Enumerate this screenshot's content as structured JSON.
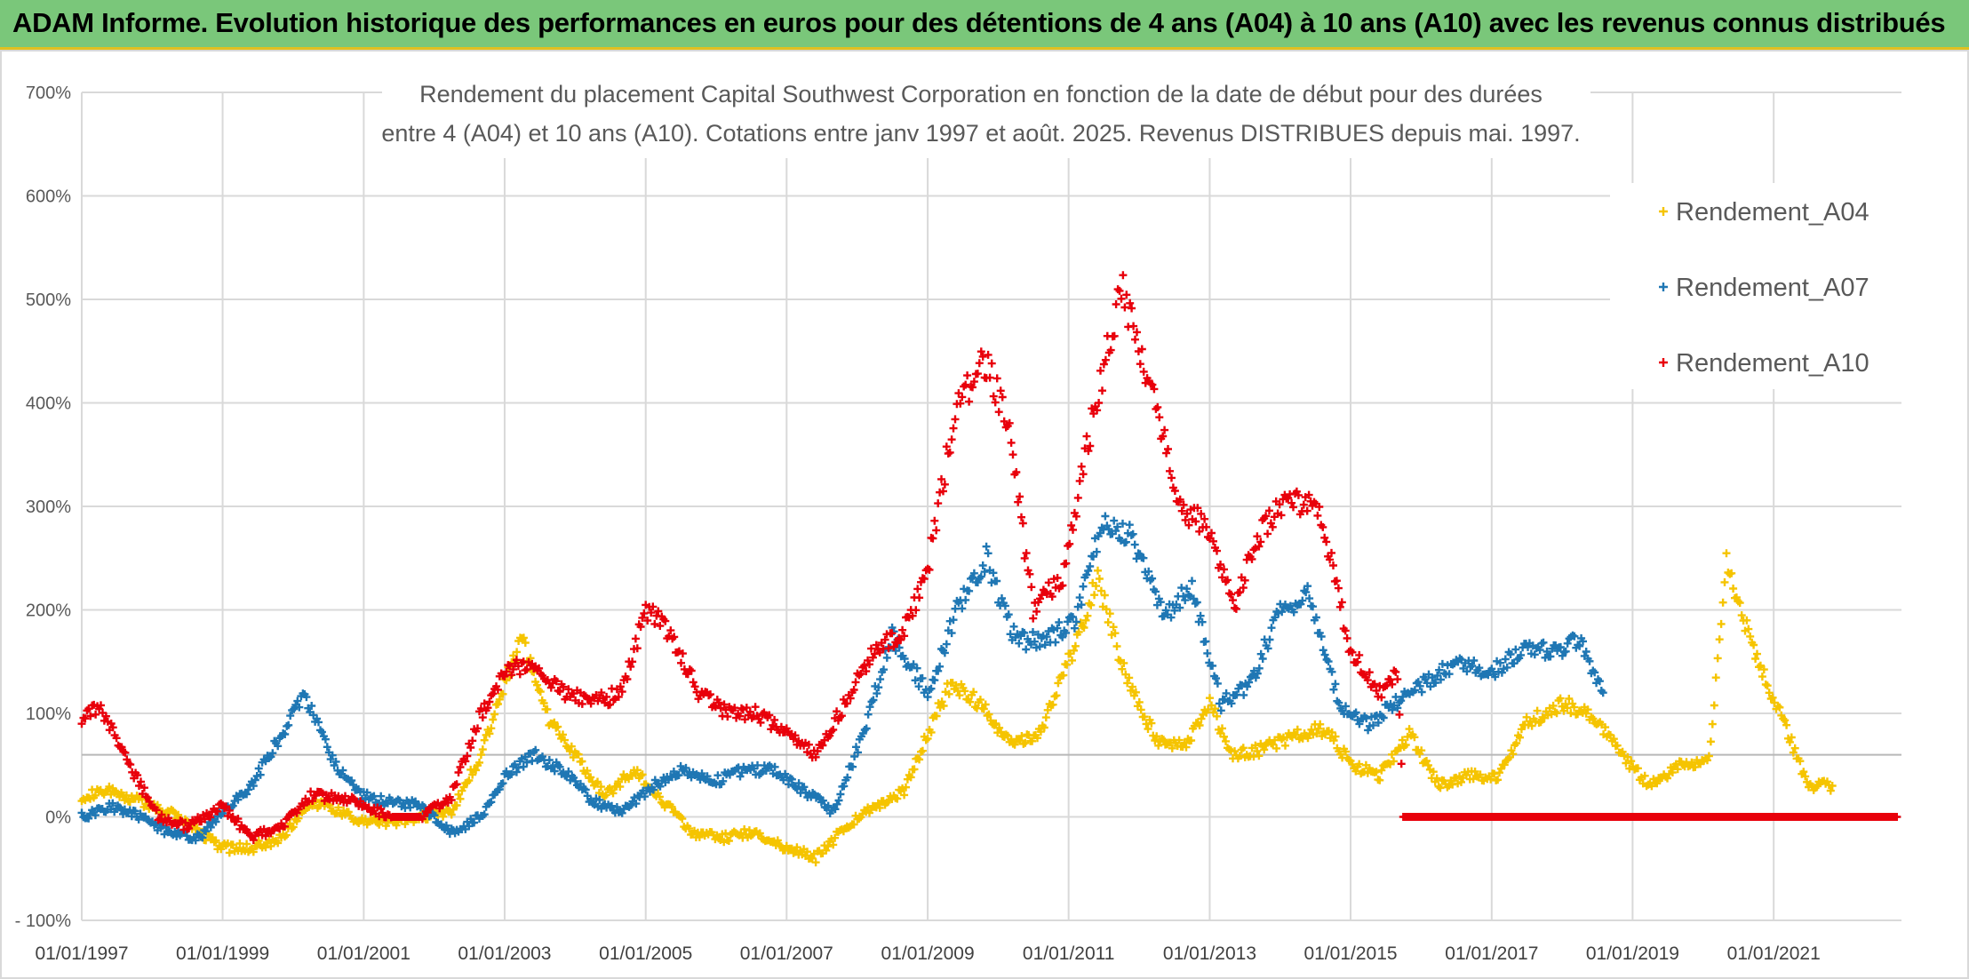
{
  "banner": {
    "title": "ADAM Informe. Evolution historique des performances en euros pour des détentions de 4 ans (A04) à 10 ans (A10) avec les revenus connus distribués"
  },
  "colors": {
    "banner_bg": "#7ac77a",
    "A04": "#f5c400",
    "A07": "#1f77b4",
    "A10": "#e8000b",
    "grid": "#d9d9d9"
  },
  "chart_data": {
    "type": "scatter",
    "title": "Rendement du placement Capital Southwest Corporation en fonction de la date de début pour des durées entre 4 (A04) et 10 ans (A10). Cotations entre janv 1997 et août. 2025. Revenus DISTRIBUES depuis mai. 1997.",
    "title_lines": [
      "Rendement du placement Capital Southwest Corporation en fonction de la date de début pour des durées",
      "entre 4 (A04) et 10 ans (A10). Cotations entre janv 1997 et août. 2025. Revenus DISTRIBUES depuis mai. 1997."
    ],
    "marker": "+",
    "grid": true,
    "legend_position": "top-right",
    "y_axis": {
      "min": -100,
      "max": 700,
      "unit": "%",
      "ticks": [
        -100,
        0,
        100,
        200,
        300,
        400,
        500,
        600,
        700
      ],
      "tick_labels": [
        "- 100%",
        "0%",
        "100%",
        "200%",
        "300%",
        "400%",
        "500%",
        "600%",
        "700%"
      ]
    },
    "x_axis": {
      "min": "1997-01-01",
      "max": "2022-10-25",
      "ticks": [
        "1997-01-01",
        "1999-01-01",
        "2001-01-01",
        "2003-01-01",
        "2005-01-01",
        "2007-01-01",
        "2009-01-01",
        "2011-01-01",
        "2013-01-01",
        "2015-01-01",
        "2017-01-01",
        "2019-01-01",
        "2021-01-01"
      ],
      "tick_labels": [
        "01/01/1997",
        "01/01/1999",
        "01/01/2001",
        "01/01/2003",
        "01/01/2005",
        "01/01/2007",
        "01/01/2009",
        "01/01/2011",
        "01/01/2013",
        "01/01/2015",
        "01/01/2017",
        "01/01/2019",
        "01/01/2021"
      ]
    },
    "series": [
      {
        "name": "Rendement_A04",
        "color": "#f5c400",
        "points": [
          [
            "1997-01-01",
            20
          ],
          [
            "1997-06-01",
            25
          ],
          [
            "1997-11-01",
            15
          ],
          [
            "1998-04-01",
            5
          ],
          [
            "1998-09-01",
            -15
          ],
          [
            "1999-01-01",
            -30
          ],
          [
            "1999-06-01",
            -30
          ],
          [
            "1999-11-01",
            -20
          ],
          [
            "2000-04-01",
            15
          ],
          [
            "2000-09-01",
            5
          ],
          [
            "2001-01-01",
            -5
          ],
          [
            "2001-06-01",
            -5
          ],
          [
            "2001-11-01",
            0
          ],
          [
            "2002-04-01",
            5
          ],
          [
            "2002-09-01",
            60
          ],
          [
            "2003-01-01",
            130
          ],
          [
            "2003-04-01",
            175
          ],
          [
            "2003-08-01",
            100
          ],
          [
            "2004-01-01",
            60
          ],
          [
            "2004-06-01",
            20
          ],
          [
            "2004-11-01",
            45
          ],
          [
            "2005-04-01",
            15
          ],
          [
            "2005-09-01",
            -15
          ],
          [
            "2006-02-01",
            -20
          ],
          [
            "2006-07-01",
            -15
          ],
          [
            "2007-01-01",
            -30
          ],
          [
            "2007-06-01",
            -40
          ],
          [
            "2007-11-01",
            -10
          ],
          [
            "2008-04-01",
            10
          ],
          [
            "2008-09-01",
            25
          ],
          [
            "2009-01-01",
            80
          ],
          [
            "2009-05-01",
            130
          ],
          [
            "2009-10-01",
            110
          ],
          [
            "2010-03-01",
            70
          ],
          [
            "2010-08-01",
            80
          ],
          [
            "2011-01-01",
            150
          ],
          [
            "2011-06-01",
            230
          ],
          [
            "2011-11-01",
            130
          ],
          [
            "2012-04-01",
            75
          ],
          [
            "2012-09-01",
            70
          ],
          [
            "2013-01-01",
            110
          ],
          [
            "2013-05-01",
            60
          ],
          [
            "2013-10-01",
            65
          ],
          [
            "2014-04-01",
            80
          ],
          [
            "2014-09-01",
            85
          ],
          [
            "2015-01-01",
            50
          ],
          [
            "2015-06-01",
            40
          ],
          [
            "2015-11-01",
            80
          ],
          [
            "2016-04-01",
            30
          ],
          [
            "2016-09-01",
            40
          ],
          [
            "2017-02-01",
            40
          ],
          [
            "2017-07-01",
            90
          ],
          [
            "2018-01-01",
            110
          ],
          [
            "2018-06-01",
            100
          ],
          [
            "2018-11-01",
            60
          ],
          [
            "2019-04-01",
            30
          ],
          [
            "2019-09-01",
            50
          ],
          [
            "2020-02-01",
            55
          ],
          [
            "2020-05-01",
            250
          ],
          [
            "2020-09-01",
            170
          ],
          [
            "2021-02-01",
            100
          ],
          [
            "2021-07-01",
            30
          ],
          [
            "2021-11-01",
            30
          ]
        ]
      },
      {
        "name": "Rendement_A07",
        "color": "#1f77b4",
        "points": [
          [
            "1997-01-01",
            0
          ],
          [
            "1997-06-01",
            10
          ],
          [
            "1997-11-01",
            0
          ],
          [
            "1998-04-01",
            -15
          ],
          [
            "1998-09-01",
            -20
          ],
          [
            "1999-01-01",
            5
          ],
          [
            "1999-06-01",
            30
          ],
          [
            "1999-11-01",
            80
          ],
          [
            "2000-03-01",
            120
          ],
          [
            "2000-08-01",
            50
          ],
          [
            "2001-01-01",
            20
          ],
          [
            "2001-06-01",
            15
          ],
          [
            "2001-11-01",
            10
          ],
          [
            "2002-04-01",
            -15
          ],
          [
            "2002-09-01",
            0
          ],
          [
            "2003-01-01",
            40
          ],
          [
            "2003-06-01",
            60
          ],
          [
            "2003-11-01",
            45
          ],
          [
            "2004-04-01",
            15
          ],
          [
            "2004-09-01",
            5
          ],
          [
            "2005-02-01",
            30
          ],
          [
            "2005-07-01",
            45
          ],
          [
            "2006-01-01",
            35
          ],
          [
            "2006-06-01",
            45
          ],
          [
            "2006-11-01",
            45
          ],
          [
            "2007-04-01",
            25
          ],
          [
            "2007-09-01",
            5
          ],
          [
            "2008-02-01",
            80
          ],
          [
            "2008-07-01",
            175
          ],
          [
            "2009-01-01",
            120
          ],
          [
            "2009-06-01",
            200
          ],
          [
            "2009-11-01",
            250
          ],
          [
            "2010-04-01",
            170
          ],
          [
            "2010-09-01",
            170
          ],
          [
            "2011-02-01",
            190
          ],
          [
            "2011-07-01",
            290
          ],
          [
            "2011-12-01",
            270
          ],
          [
            "2012-05-01",
            195
          ],
          [
            "2012-10-01",
            220
          ],
          [
            "2013-03-01",
            110
          ],
          [
            "2013-08-01",
            130
          ],
          [
            "2014-01-01",
            200
          ],
          [
            "2014-06-01",
            215
          ],
          [
            "2014-11-01",
            110
          ],
          [
            "2015-04-01",
            90
          ],
          [
            "2015-09-01",
            110
          ],
          [
            "2016-02-01",
            130
          ],
          [
            "2016-07-01",
            150
          ],
          [
            "2017-01-01",
            140
          ],
          [
            "2017-06-01",
            160
          ],
          [
            "2017-11-01",
            160
          ],
          [
            "2018-04-01",
            170
          ],
          [
            "2018-08-01",
            120
          ]
        ]
      },
      {
        "name": "Rendement_A10",
        "color": "#e8000b",
        "points": [
          [
            "1997-01-01",
            90
          ],
          [
            "1997-04-01",
            110
          ],
          [
            "1997-09-01",
            50
          ],
          [
            "1998-02-01",
            0
          ],
          [
            "1998-07-01",
            -10
          ],
          [
            "1999-01-01",
            10
          ],
          [
            "1999-06-01",
            -20
          ],
          [
            "1999-11-01",
            -10
          ],
          [
            "2000-04-01",
            20
          ],
          [
            "2000-09-01",
            20
          ],
          [
            "2001-01-01",
            10
          ],
          [
            "2001-06-01",
            0
          ],
          [
            "2001-11-01",
            0
          ],
          [
            "2002-04-01",
            20
          ],
          [
            "2002-09-01",
            100
          ],
          [
            "2003-01-01",
            140
          ],
          [
            "2003-06-01",
            150
          ],
          [
            "2003-11-01",
            120
          ],
          [
            "2004-04-01",
            110
          ],
          [
            "2004-09-01",
            120
          ],
          [
            "2005-01-01",
            200
          ],
          [
            "2005-05-01",
            180
          ],
          [
            "2005-10-01",
            120
          ],
          [
            "2006-03-01",
            100
          ],
          [
            "2006-08-01",
            100
          ],
          [
            "2007-01-01",
            80
          ],
          [
            "2007-06-01",
            60
          ],
          [
            "2007-11-01",
            110
          ],
          [
            "2008-04-01",
            160
          ],
          [
            "2008-09-01",
            180
          ],
          [
            "2009-01-01",
            240
          ],
          [
            "2009-06-01",
            400
          ],
          [
            "2009-11-01",
            440
          ],
          [
            "2010-03-01",
            370
          ],
          [
            "2010-07-01",
            200
          ],
          [
            "2010-12-01",
            230
          ],
          [
            "2011-05-01",
            380
          ],
          [
            "2011-10-01",
            510
          ],
          [
            "2012-03-01",
            420
          ],
          [
            "2012-08-01",
            300
          ],
          [
            "2013-01-01",
            280
          ],
          [
            "2013-05-01",
            200
          ],
          [
            "2013-10-01",
            280
          ],
          [
            "2014-03-01",
            310
          ],
          [
            "2014-08-01",
            290
          ],
          [
            "2015-01-01",
            160
          ],
          [
            "2015-06-01",
            120
          ],
          [
            "2015-09-01",
            140
          ],
          [
            "2015-10-01",
            0
          ],
          [
            "2016-06-01",
            0
          ],
          [
            "2017-06-01",
            0
          ],
          [
            "2018-06-01",
            0
          ],
          [
            "2019-06-01",
            0
          ],
          [
            "2020-06-01",
            0
          ],
          [
            "2021-06-01",
            0
          ],
          [
            "2022-10-01",
            0
          ]
        ]
      }
    ]
  }
}
